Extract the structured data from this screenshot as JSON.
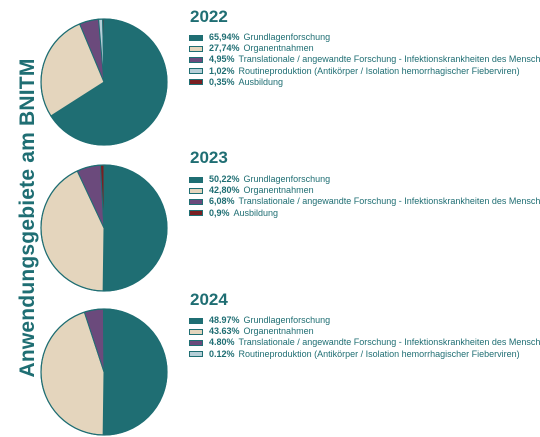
{
  "side_title": "Anwendungsgebiete am BNITM",
  "colors": {
    "Grundlagenforschung": "#1f6e73",
    "Organentnahmen": "#e4d5bd",
    "Translationale": "#6b4a7c",
    "Routineproduktion": "#b6cfd8",
    "Ausbildung": "#7a1f22"
  },
  "chart_data": [
    {
      "type": "pie",
      "title": "2022",
      "categories": [
        "Grundlagenforschung",
        "Organentnahmen",
        "Translationale / angewandte Forschung - Infektionskrankheiten des Menschen",
        "Routineproduktion (Antikörper / Isolation hemorrhagischer Fieberviren)",
        "Ausbildung"
      ],
      "values": [
        65.94,
        27.74,
        4.95,
        1.02,
        0.35
      ],
      "labels": [
        "65,94%",
        "27,74%",
        "4,95%",
        "1,02%",
        "0,35%"
      ],
      "color_keys": [
        "Grundlagenforschung",
        "Organentnahmen",
        "Translationale",
        "Routineproduktion",
        "Ausbildung"
      ]
    },
    {
      "type": "pie",
      "title": "2023",
      "categories": [
        "Grundlagenforschung",
        "Organentnahmen",
        "Translationale / angewandte Forschung - Infektionskrankheiten des Menschen",
        "Ausbildung"
      ],
      "values": [
        50.22,
        42.8,
        6.08,
        0.9
      ],
      "labels": [
        "50,22%",
        "42,80%",
        "6,08%",
        "0,9%"
      ],
      "color_keys": [
        "Grundlagenforschung",
        "Organentnahmen",
        "Translationale",
        "Ausbildung"
      ]
    },
    {
      "type": "pie",
      "title": "2024",
      "categories": [
        "Grundlagenforschung",
        "Organentnahmen",
        "Translationale / angewandte Forschung - Infektionskrankheiten des Menschen",
        "Routineproduktion (Antikörper / Isolation hemorrhagischer Fieberviren)"
      ],
      "values": [
        48.97,
        43.63,
        4.8,
        0.12
      ],
      "labels": [
        "48.97%",
        "43.63%",
        "4.80%",
        "0.12%"
      ],
      "color_keys": [
        "Grundlagenforschung",
        "Organentnahmen",
        "Translationale",
        "Routineproduktion"
      ]
    }
  ]
}
